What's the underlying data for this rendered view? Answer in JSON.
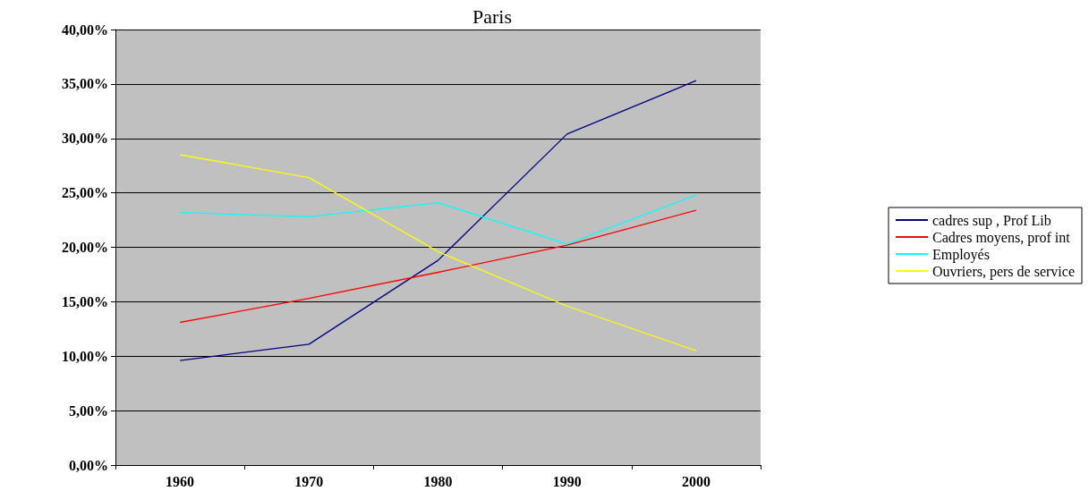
{
  "chart_data": {
    "type": "line",
    "title": "Paris",
    "categories": [
      "1960",
      "1970",
      "1980",
      "1990",
      "2000"
    ],
    "series": [
      {
        "name": "cadres sup , Prof Lib",
        "color": "#000080",
        "values": [
          9.6,
          11.1,
          18.8,
          30.4,
          35.3
        ]
      },
      {
        "name": "Cadres moyens, prof int",
        "color": "#ff0000",
        "values": [
          13.1,
          15.3,
          17.7,
          20.2,
          23.4
        ]
      },
      {
        "name": "Employés",
        "color": "#00ffff",
        "values": [
          23.2,
          22.8,
          24.1,
          20.3,
          24.8
        ]
      },
      {
        "name": "Ouvriers, pers de service",
        "color": "#ffff00",
        "values": [
          28.5,
          26.4,
          19.6,
          14.6,
          10.5
        ]
      }
    ],
    "ylim": [
      0,
      40
    ],
    "yticks": [
      {
        "value": 0,
        "label": "0,00%"
      },
      {
        "value": 5,
        "label": "5,00%"
      },
      {
        "value": 10,
        "label": "10,00%"
      },
      {
        "value": 15,
        "label": "15,00%"
      },
      {
        "value": 20,
        "label": "20,00%"
      },
      {
        "value": 25,
        "label": "25,00%"
      },
      {
        "value": 30,
        "label": "30,00%"
      },
      {
        "value": 35,
        "label": "35,00%"
      },
      {
        "value": 40,
        "label": "40,00%"
      }
    ],
    "grid": "y",
    "legend": "right",
    "marker": "none",
    "line_style": "solid"
  }
}
